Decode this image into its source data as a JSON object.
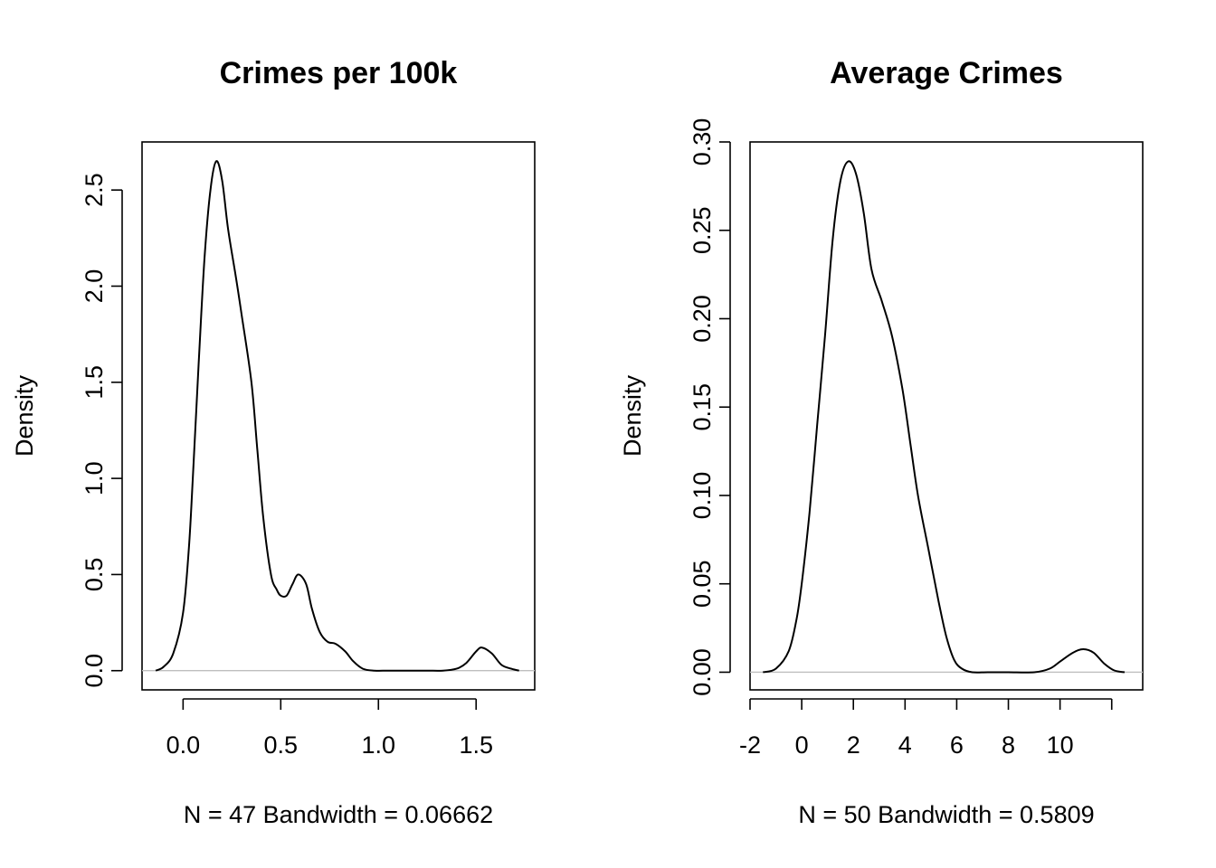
{
  "chart_data": [
    {
      "type": "line",
      "title": "Crimes per 100k",
      "ylabel": "Density",
      "xlabel": "N = 47   Bandwidth = 0.06662",
      "xlim": [
        -0.21,
        1.8
      ],
      "ylim": [
        -0.1,
        2.75
      ],
      "xticks": [
        0.0,
        0.5,
        1.0,
        1.5
      ],
      "xtick_labels": [
        "0.0",
        "0.5",
        "1.0",
        "1.5"
      ],
      "yticks": [
        0.0,
        0.5,
        1.0,
        1.5,
        2.0,
        2.5
      ],
      "ytick_labels": [
        "0.0",
        "0.5",
        "1.0",
        "1.5",
        "2.0",
        "2.5"
      ],
      "zero_line": true,
      "grid": false,
      "series": [
        {
          "x": [
            -0.14,
            -0.1,
            -0.05,
            0.0,
            0.03,
            0.05,
            0.08,
            0.11,
            0.14,
            0.17,
            0.2,
            0.23,
            0.27,
            0.3,
            0.35,
            0.38,
            0.41,
            0.45,
            0.48,
            0.5,
            0.53,
            0.56,
            0.59,
            0.63,
            0.66,
            0.7,
            0.74,
            0.78,
            0.83,
            0.87,
            0.92,
            0.98,
            1.05,
            1.15,
            1.25,
            1.33,
            1.4,
            1.45,
            1.5,
            1.53,
            1.58,
            1.63,
            1.68,
            1.72
          ],
          "y": [
            0.0,
            0.02,
            0.09,
            0.3,
            0.64,
            1.0,
            1.6,
            2.15,
            2.5,
            2.65,
            2.55,
            2.3,
            2.05,
            1.85,
            1.5,
            1.15,
            0.8,
            0.5,
            0.42,
            0.39,
            0.39,
            0.45,
            0.5,
            0.45,
            0.32,
            0.2,
            0.15,
            0.14,
            0.1,
            0.05,
            0.01,
            0.0,
            0.0,
            0.0,
            0.0,
            0.0,
            0.01,
            0.04,
            0.1,
            0.12,
            0.09,
            0.03,
            0.01,
            0.0
          ]
        }
      ]
    },
    {
      "type": "line",
      "title": "Average Crimes",
      "ylabel": "Density",
      "xlabel": "N = 50   Bandwidth = 0.5809",
      "xlim": [
        -2.0,
        13.2
      ],
      "ylim": [
        -0.01,
        0.3
      ],
      "xticks": [
        -2,
        0,
        2,
        4,
        6,
        8,
        10,
        12
      ],
      "xtick_labels": [
        "-2",
        "0",
        "2",
        "4",
        "6",
        "8",
        "10",
        ""
      ],
      "yticks": [
        0.0,
        0.05,
        0.1,
        0.15,
        0.2,
        0.25,
        0.3
      ],
      "ytick_labels": [
        "0.00",
        "0.05",
        "0.10",
        "0.15",
        "0.20",
        "0.25",
        "0.30"
      ],
      "zero_line": true,
      "grid": false,
      "series": [
        {
          "x": [
            -1.5,
            -1.0,
            -0.5,
            -0.2,
            0.0,
            0.3,
            0.6,
            0.9,
            1.2,
            1.5,
            1.8,
            2.1,
            2.4,
            2.7,
            3.1,
            3.5,
            3.9,
            4.2,
            4.5,
            4.9,
            5.3,
            5.6,
            5.9,
            6.2,
            6.6,
            7.2,
            8.0,
            9.0,
            9.6,
            10.0,
            10.5,
            10.9,
            11.3,
            11.7,
            12.1,
            12.5
          ],
          "y": [
            0.0,
            0.002,
            0.012,
            0.03,
            0.05,
            0.09,
            0.14,
            0.19,
            0.245,
            0.278,
            0.289,
            0.282,
            0.26,
            0.228,
            0.21,
            0.19,
            0.16,
            0.13,
            0.1,
            0.07,
            0.04,
            0.02,
            0.007,
            0.002,
            0.0,
            0.0,
            0.0,
            0.0,
            0.002,
            0.006,
            0.011,
            0.013,
            0.011,
            0.005,
            0.001,
            0.0
          ]
        }
      ]
    }
  ]
}
